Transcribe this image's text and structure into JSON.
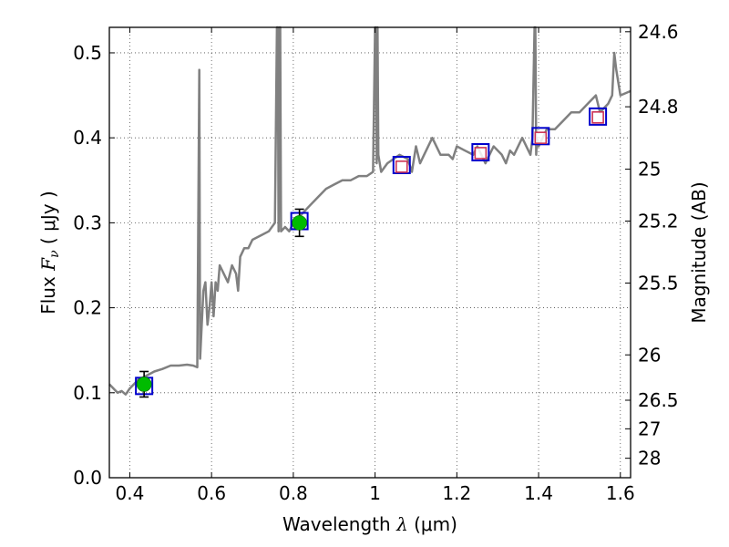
{
  "chart_data": {
    "type": "line",
    "xlabel": "Wavelength",
    "xlabel_symbol": "λ",
    "xlabel_unit": "μm",
    "ylabel": "Flux",
    "ylabel_symbol": "F",
    "ylabel_subscript": "ν",
    "ylabel_unit": "μJy",
    "y2label": "Magnitude (AB)",
    "xlim": [
      0.35,
      1.625
    ],
    "ylim": [
      0.0,
      0.53
    ],
    "grid": true,
    "x_ticks": [
      0.4,
      0.6,
      0.8,
      1.0,
      1.2,
      1.4,
      1.6
    ],
    "x_tick_labels": [
      "0.4",
      "0.6",
      "0.8",
      "1",
      "1.2",
      "1.4",
      "1.6"
    ],
    "y_ticks": [
      0.0,
      0.1,
      0.2,
      0.3,
      0.4,
      0.5
    ],
    "y_tick_labels": [
      "0.0",
      "0.1",
      "0.2",
      "0.3",
      "0.4",
      "0.5"
    ],
    "y2_ticks": [
      24.6,
      24.8,
      25,
      25.2,
      25.5,
      26,
      26.5,
      27,
      28
    ],
    "y2_tick_labels": [
      "24.6",
      "24.8",
      "25",
      "25.2",
      "25.5",
      "26",
      "26.5",
      "27",
      "28"
    ],
    "colors": {
      "spectrum": "#808080",
      "detection": "#00bb00",
      "model_box": "#0000cc",
      "upper_box": "#cc3355",
      "errorbar": "#000000"
    },
    "series": [
      {
        "name": "model spectrum",
        "x": [
          0.35,
          0.36,
          0.37,
          0.38,
          0.39,
          0.4,
          0.41,
          0.42,
          0.44,
          0.46,
          0.48,
          0.5,
          0.52,
          0.54,
          0.555,
          0.565,
          0.57,
          0.572,
          0.574,
          0.576,
          0.58,
          0.585,
          0.59,
          0.595,
          0.6,
          0.605,
          0.61,
          0.615,
          0.62,
          0.63,
          0.64,
          0.65,
          0.66,
          0.665,
          0.67,
          0.68,
          0.69,
          0.7,
          0.72,
          0.74,
          0.755,
          0.76,
          0.762,
          0.764,
          0.766,
          0.768,
          0.77,
          0.78,
          0.79,
          0.8,
          0.82,
          0.84,
          0.86,
          0.88,
          0.9,
          0.92,
          0.94,
          0.96,
          0.98,
          0.995,
          1.0,
          1.002,
          1.004,
          1.006,
          1.008,
          1.015,
          1.03,
          1.06,
          1.08,
          1.09,
          1.1,
          1.11,
          1.12,
          1.14,
          1.16,
          1.18,
          1.19,
          1.2,
          1.22,
          1.24,
          1.25,
          1.27,
          1.29,
          1.31,
          1.32,
          1.33,
          1.34,
          1.36,
          1.38,
          1.385,
          1.39,
          1.392,
          1.394,
          1.396,
          1.4,
          1.42,
          1.44,
          1.46,
          1.48,
          1.5,
          1.52,
          1.54,
          1.55,
          1.57,
          1.58,
          1.585,
          1.59,
          1.6,
          1.625
        ],
        "y": [
          0.11,
          0.105,
          0.1,
          0.102,
          0.098,
          0.105,
          0.11,
          0.115,
          0.12,
          0.125,
          0.128,
          0.132,
          0.132,
          0.133,
          0.132,
          0.13,
          0.48,
          0.14,
          0.16,
          0.18,
          0.22,
          0.23,
          0.18,
          0.2,
          0.23,
          0.19,
          0.23,
          0.22,
          0.25,
          0.24,
          0.23,
          0.25,
          0.24,
          0.22,
          0.26,
          0.27,
          0.27,
          0.28,
          0.285,
          0.29,
          0.3,
          0.53,
          0.53,
          0.29,
          0.53,
          0.53,
          0.29,
          0.295,
          0.29,
          0.3,
          0.31,
          0.32,
          0.33,
          0.34,
          0.345,
          0.35,
          0.35,
          0.355,
          0.355,
          0.36,
          0.53,
          0.53,
          0.37,
          0.53,
          0.38,
          0.36,
          0.37,
          0.38,
          0.375,
          0.36,
          0.39,
          0.37,
          0.38,
          0.4,
          0.38,
          0.38,
          0.375,
          0.39,
          0.385,
          0.38,
          0.39,
          0.37,
          0.39,
          0.38,
          0.37,
          0.385,
          0.38,
          0.4,
          0.38,
          0.4,
          0.53,
          0.53,
          0.38,
          0.4,
          0.39,
          0.41,
          0.41,
          0.42,
          0.43,
          0.43,
          0.44,
          0.45,
          0.43,
          0.44,
          0.45,
          0.5,
          0.48,
          0.45,
          0.455
        ]
      },
      {
        "name": "detections",
        "x": [
          0.435,
          0.815
        ],
        "y": [
          0.11,
          0.3
        ],
        "yerr": [
          0.015,
          0.016
        ]
      },
      {
        "name": "model photometry",
        "x": [
          0.435,
          0.815,
          1.065,
          1.258,
          1.405,
          1.545
        ],
        "y": [
          0.108,
          0.302,
          0.368,
          0.383,
          0.402,
          0.425
        ]
      },
      {
        "name": "upper limits",
        "x": [
          1.065,
          1.258,
          1.405,
          1.545
        ],
        "y": [
          0.366,
          0.382,
          0.4,
          0.424
        ]
      }
    ]
  }
}
